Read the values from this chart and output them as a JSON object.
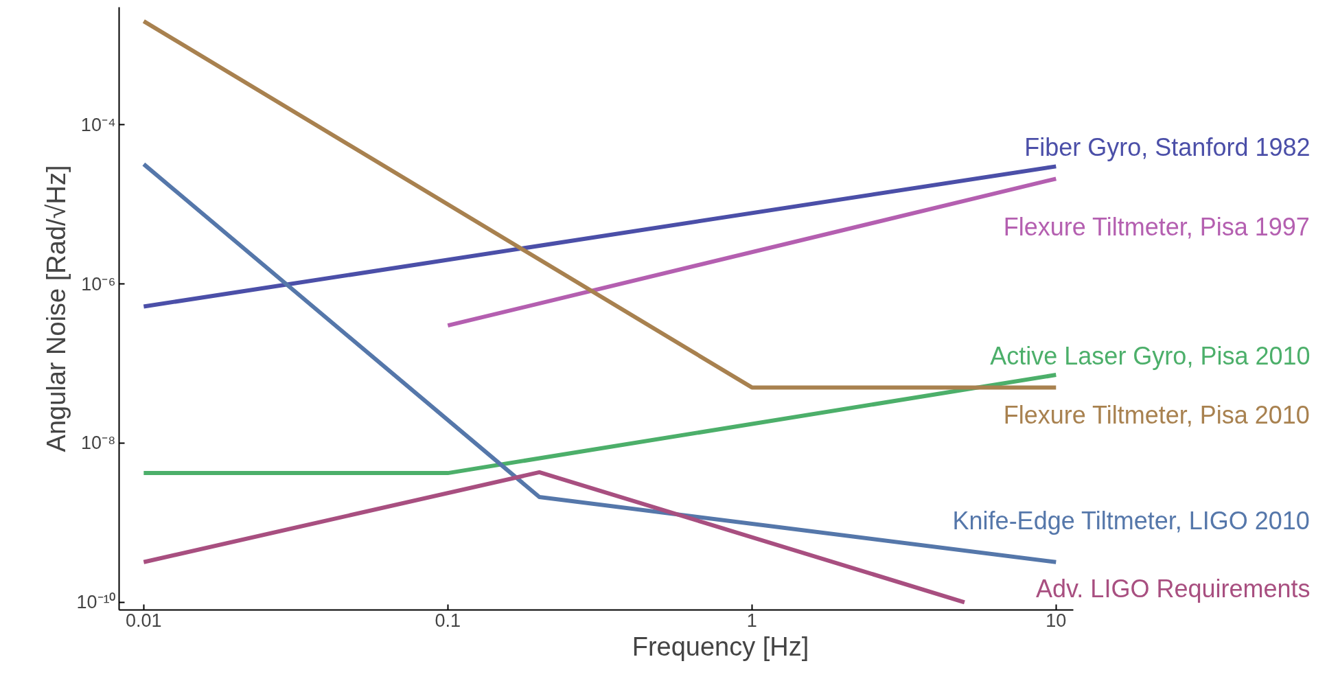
{
  "chart_data": {
    "type": "line",
    "xlabel": "Frequency [Hz]",
    "ylabel": "Angular Noise [Rad/√Hz]",
    "log": "xy",
    "grid": false,
    "xlim": [
      0.0083,
      11.4
    ],
    "ylim": [
      8e-11,
      0.003
    ],
    "xticks": [
      0.01,
      0.1,
      1,
      10
    ],
    "yticks": [
      {
        "value": 1e-10,
        "label": "10⁻¹⁰"
      },
      {
        "value": 1e-08,
        "label": "10⁻⁸"
      },
      {
        "value": 1e-06,
        "label": "10⁻⁶"
      },
      {
        "value": 0.0001,
        "label": "10⁻⁴"
      }
    ],
    "series": [
      {
        "name": "Fiber Gyro, Stanford 1982",
        "color": "#4b4fa8",
        "x": [
          0.01,
          10
        ],
        "values": [
          5.2e-07,
          3e-05
        ]
      },
      {
        "name": "Flexure Tiltmeter, Pisa 1997",
        "color": "#b45fb0",
        "x": [
          0.1,
          10
        ],
        "values": [
          3e-07,
          2.1e-05
        ]
      },
      {
        "name": "Active Laser Gyro, Pisa 2010",
        "color": "#4caf6a",
        "x": [
          0.01,
          0.1,
          10
        ],
        "values": [
          4.2e-09,
          4.2e-09,
          7.2e-08
        ]
      },
      {
        "name": "Flexure Tiltmeter, Pisa 2010",
        "color": "#a8814f",
        "x": [
          0.01,
          1,
          10
        ],
        "values": [
          0.002,
          5e-08,
          5e-08
        ]
      },
      {
        "name": "Knife-Edge Tiltmeter, LIGO 2010",
        "color": "#5577aa",
        "x": [
          0.01,
          0.2,
          10
        ],
        "values": [
          3.2e-05,
          2.1e-09,
          3.2e-10
        ]
      },
      {
        "name": "Adv. LIGO Requirements",
        "color": "#a84f80",
        "x": [
          0.01,
          0.2,
          5
        ],
        "values": [
          3.2e-10,
          4.3e-09,
          1e-10
        ]
      }
    ]
  }
}
